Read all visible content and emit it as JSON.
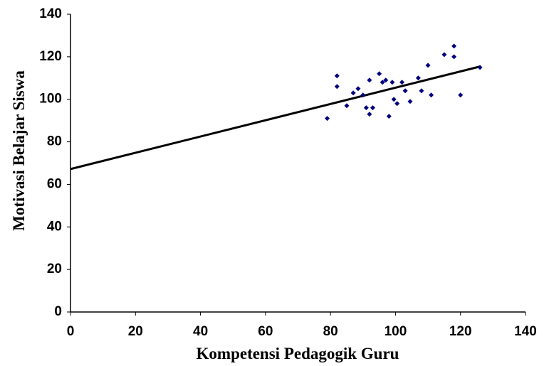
{
  "chart_data": {
    "type": "scatter",
    "x": [
      79,
      82,
      82,
      85,
      87,
      88.5,
      90,
      91,
      92,
      92,
      93,
      95,
      96,
      97,
      98,
      99,
      99.5,
      100.5,
      102,
      103,
      104.5,
      107,
      108,
      110,
      111,
      115,
      118,
      118,
      120,
      126
    ],
    "values": [
      91,
      111,
      106,
      97,
      103,
      105,
      102,
      96,
      109,
      93,
      96,
      112,
      108,
      109,
      92,
      108,
      100,
      98,
      108,
      104,
      99,
      110,
      104,
      116,
      102,
      121,
      125,
      120,
      102,
      115
    ],
    "color": "#000080",
    "trendline": {
      "x": [
        0,
        126
      ],
      "y": [
        67.2,
        115.4
      ],
      "color": "#000000"
    },
    "xlabel": "Kompetensi Pedagogik Guru",
    "ylabel": "Motivasi Belajar Siswa",
    "xlim": [
      0,
      140
    ],
    "ylim": [
      0,
      140
    ],
    "xticks": [
      0,
      20,
      40,
      60,
      80,
      100,
      120,
      140
    ],
    "yticks": [
      0,
      20,
      40,
      60,
      80,
      100,
      120,
      140
    ],
    "grid": false
  }
}
